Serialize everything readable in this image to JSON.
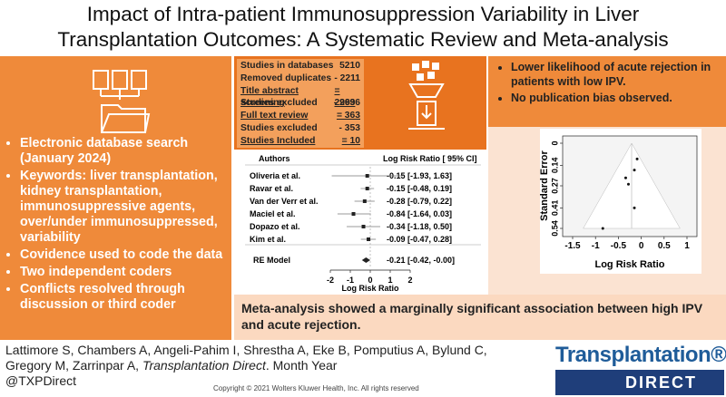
{
  "title": [
    "Impact of Intra-patient Immunosuppression Variability in Liver",
    "Transplantation Outcomes: A Systematic Review and Meta-analysis"
  ],
  "methods": {
    "bullets": [
      "Electronic database search (January 2024)",
      "Keywords: liver transplantation, kidney transplantation, immunosuppressive agents, over/under immunosuppressed, variability",
      "Covidence used to code the data",
      "Two independent coders",
      "Conflicts resolved through discussion or third coder"
    ]
  },
  "prisma": {
    "rows": [
      {
        "label": "Studies in databases",
        "value": "5210",
        "underline": false
      },
      {
        "label": "Removed duplicates",
        "value": "- 2211",
        "underline": false
      },
      {
        "label": "Title abstract screening",
        "value": "= 2999",
        "underline": true
      },
      {
        "label": "Studies excluded",
        "value": "- 2636",
        "underline": false
      },
      {
        "label": "Full text review",
        "value": "= 363",
        "underline": true
      },
      {
        "label": "Studies excluded",
        "value": "- 353",
        "underline": false
      },
      {
        "label": "Studies Included",
        "value": "= 10",
        "underline": true
      }
    ]
  },
  "forest": {
    "header_authors": "Authors",
    "header_effect": "Log Risk Ratio [ 95% CI]",
    "studies": [
      {
        "name": "Oliveria et al.",
        "label": "-0.15 [-1.93, 1.63]",
        "estimate": -0.15,
        "lower": -1.93,
        "upper": 1.63
      },
      {
        "name": "Ravar et al.",
        "label": "-0.15 [-0.48, 0.19]",
        "estimate": -0.15,
        "lower": -0.48,
        "upper": 0.19
      },
      {
        "name": "Van der Verr et al.",
        "label": "-0.28 [-0.79, 0.22]",
        "estimate": -0.28,
        "lower": -0.79,
        "upper": 0.22
      },
      {
        "name": "Maciel et al.",
        "label": "-0.84 [-1.64, 0.03]",
        "estimate": -0.84,
        "lower": -1.64,
        "upper": 0.03
      },
      {
        "name": "Dopazo et al.",
        "label": "-0.34 [-1.18, 0.50]",
        "estimate": -0.34,
        "lower": -1.18,
        "upper": 0.5
      },
      {
        "name": "Kim et al.",
        "label": "-0.09 [-0.47, 0.28]",
        "estimate": -0.09,
        "lower": -0.47,
        "upper": 0.28
      }
    ],
    "re_model": {
      "name": "RE Model",
      "label": "-0.21 [-0.42, -0.00]",
      "estimate": -0.21,
      "lower": -0.42,
      "upper": 0
    },
    "xlim": [
      -2,
      2
    ],
    "xticks": [
      -2,
      -1,
      0,
      1,
      2
    ],
    "xlabel": "Log Risk Ratio"
  },
  "funnel": {
    "ylabel": "Standard Error",
    "xlabel": "Log Risk Ratio",
    "xlim": [
      -1.5,
      1
    ],
    "ylim": [
      0,
      0.54
    ],
    "xticks": [
      -1.5,
      -1,
      -0.5,
      0,
      0.5,
      1
    ],
    "yticks": [
      0,
      0.14,
      0.27,
      0.41,
      0.54
    ],
    "points": [
      {
        "x": -0.09,
        "se": 0.1
      },
      {
        "x": -0.15,
        "se": 0.17
      },
      {
        "x": -0.34,
        "se": 0.22
      },
      {
        "x": -0.28,
        "se": 0.26
      },
      {
        "x": -0.15,
        "se": 0.41
      },
      {
        "x": -0.84,
        "se": 0.54
      }
    ]
  },
  "results": {
    "bullets": [
      "Lower likelihood of acute rejection in patients with low IPV.",
      "No publication bias observed."
    ]
  },
  "conclusion": "Meta-analysis showed a marginally significant association between high IPV and acute rejection.",
  "citation": {
    "authors": "Lattimore S, Chambers A, Angeli-Pahim I, Shrestha A, Eke B, Pomputius A, Bylund C, Gregory M, Zarrinpar A, ",
    "journal": "Transplantation Direct",
    "date": ". Month Year",
    "handle": "@TXPDirect"
  },
  "copyright": "Copyright © 2021  Wolters Kluwer Health, Inc. All rights reserved",
  "logo": {
    "name": "Transplantation®",
    "sub": "DIRECT"
  }
}
